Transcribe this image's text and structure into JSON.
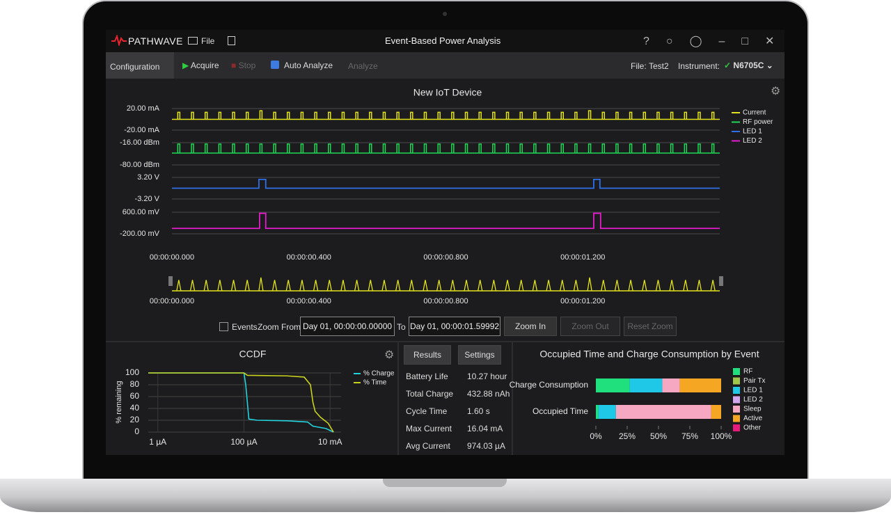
{
  "app": {
    "logo": "PATHWAVE",
    "menu": "File",
    "title": "Event-Based Power Analysis"
  },
  "toolbar": {
    "configuration": "Configuration",
    "acquire": "Acquire",
    "stop": "Stop",
    "auto_analyze": "Auto Analyze",
    "analyze": "Analyze",
    "file_label": "File:",
    "file_name": "Test2",
    "instrument_label": "Instrument:",
    "instrument": "N6705C"
  },
  "main_chart": {
    "type": "line",
    "title": "New IoT Device",
    "xlim": [
      0,
      1.6
    ],
    "xticks": [
      {
        "value": 0,
        "label": "00:00:00.000"
      },
      {
        "value": 0.4,
        "label": "00:00:00.400"
      },
      {
        "value": 0.8,
        "label": "00:00:00.800"
      },
      {
        "value": 1.2,
        "label": "00:00:01.200"
      }
    ],
    "series": [
      {
        "name": "Current",
        "color": "#e4e41c",
        "ylim": [
          -20,
          20
        ],
        "yticks": [
          {
            "value": 20,
            "label": "20.00 mA"
          },
          {
            "value": -20,
            "label": "-20.00 mA"
          }
        ],
        "baseline": 0,
        "x": [
          0.02,
          0.06,
          0.1,
          0.14,
          0.18,
          0.22,
          0.26,
          0.3,
          0.34,
          0.38,
          0.42,
          0.46,
          0.5,
          0.54,
          0.58,
          0.62,
          0.66,
          0.7,
          0.74,
          0.78,
          0.82,
          0.86,
          0.9,
          0.94,
          0.98,
          1.02,
          1.06,
          1.1,
          1.14,
          1.18,
          1.22,
          1.26,
          1.3,
          1.34,
          1.38,
          1.42,
          1.46,
          1.5,
          1.54,
          1.58
        ],
        "values": [
          13,
          13,
          13,
          13,
          13,
          13,
          16,
          13,
          13,
          13,
          13,
          13,
          13,
          13,
          13,
          13,
          13,
          13,
          13,
          13,
          13,
          13,
          13,
          13,
          13,
          13,
          13,
          13,
          13,
          13,
          16,
          13,
          13,
          13,
          13,
          13,
          13,
          13,
          13,
          13
        ]
      },
      {
        "name": "RF power",
        "color": "#1ed955",
        "ylim": [
          -80,
          -16
        ],
        "yticks": [
          {
            "value": -16,
            "label": "-16.00 dBm"
          },
          {
            "value": -80,
            "label": "-80.00 dBm"
          }
        ],
        "baseline": -46,
        "x": [
          0.02,
          0.06,
          0.1,
          0.14,
          0.18,
          0.22,
          0.26,
          0.3,
          0.34,
          0.38,
          0.42,
          0.46,
          0.5,
          0.54,
          0.58,
          0.62,
          0.66,
          0.7,
          0.74,
          0.78,
          0.82,
          0.86,
          0.9,
          0.94,
          0.98,
          1.02,
          1.06,
          1.1,
          1.14,
          1.18,
          1.22,
          1.26,
          1.3,
          1.34,
          1.38,
          1.42,
          1.46,
          1.5,
          1.54,
          1.58
        ],
        "values": [
          -20,
          -20,
          -20,
          -20,
          -20,
          -20,
          -20,
          -20,
          -20,
          -20,
          -20,
          -20,
          -20,
          -20,
          -20,
          -20,
          -20,
          -20,
          -20,
          -20,
          -20,
          -20,
          -20,
          -20,
          -20,
          -20,
          -20,
          -20,
          -20,
          -20,
          -20,
          -20,
          -20,
          -20,
          -20,
          -20,
          -20,
          -20,
          -20,
          -20
        ]
      },
      {
        "name": "LED 1",
        "color": "#2f6fe8",
        "ylim": [
          -3.2,
          3.2
        ],
        "yticks": [
          {
            "value": 3.2,
            "label": "3.20 V"
          },
          {
            "value": -3.2,
            "label": "-3.20 V"
          }
        ],
        "x": [
          0,
          0.254,
          0.254,
          0.274,
          0.274,
          1.232,
          1.232,
          1.25,
          1.25,
          1.6
        ],
        "values": [
          0,
          0,
          2.6,
          2.6,
          0,
          0,
          2.6,
          2.6,
          0,
          0
        ]
      },
      {
        "name": "LED 2",
        "color": "#e41ccb",
        "ylim": [
          -200,
          600
        ],
        "yticks": [
          {
            "value": 600,
            "label": "600.00 mV"
          },
          {
            "value": -200,
            "label": "-200.00 mV"
          }
        ],
        "x": [
          0,
          0.256,
          0.256,
          0.274,
          0.274,
          1.232,
          1.232,
          1.252,
          1.252,
          1.6
        ],
        "values": [
          0,
          0,
          560,
          560,
          0,
          0,
          560,
          560,
          0,
          0
        ]
      }
    ]
  },
  "zoom": {
    "events": "Events",
    "from_label": "Zoom From:",
    "from": "Day 01, 00:00:00.00000",
    "to_label": "To",
    "to": "Day 01, 00:00:01.59992",
    "zoom_in": "Zoom In",
    "zoom_out": "Zoom Out",
    "reset_zoom": "Reset Zoom"
  },
  "ccdf": {
    "type": "line",
    "title": "CCDF",
    "ylabel": "% remaining",
    "xscale": "log",
    "xlim": [
      6e-07,
      0.018
    ],
    "xticks": [
      {
        "value": 1e-06,
        "label": "1 µA"
      },
      {
        "value": 0.0001,
        "label": "100 µA"
      },
      {
        "value": 0.01,
        "label": "10 mA"
      }
    ],
    "ylim": [
      0,
      100
    ],
    "yticks": [
      0,
      20,
      40,
      60,
      80,
      100
    ],
    "grid": true,
    "series": [
      {
        "name": "% Charge",
        "color": "#22d3dc",
        "x": [
          6e-07,
          0.0001,
          0.00011,
          0.00013,
          0.0002,
          0.001,
          0.003,
          0.004,
          0.008,
          0.012
        ],
        "values": [
          100,
          100,
          80,
          22,
          20,
          19,
          17,
          10,
          6,
          0
        ]
      },
      {
        "name": "% Time",
        "color": "#c9d21c",
        "x": [
          6e-07,
          0.0001,
          0.00012,
          0.001,
          0.0025,
          0.0035,
          0.004,
          0.0045,
          0.006,
          0.009,
          0.012
        ],
        "values": [
          100,
          100,
          96,
          95,
          93,
          80,
          50,
          35,
          25,
          15,
          0
        ]
      }
    ]
  },
  "results": {
    "tabs": [
      "Results",
      "Settings"
    ],
    "rows": [
      [
        "Battery Life",
        "10.27 hour"
      ],
      [
        "Total Charge",
        "432.88 nAh"
      ],
      [
        "Cycle Time",
        "1.60 s"
      ],
      [
        "Max Current",
        "16.04 mA"
      ],
      [
        "Avg Current",
        "974.03 µA"
      ]
    ]
  },
  "event_chart": {
    "type": "bar",
    "orientation": "horizontal",
    "stacked": true,
    "title": "Occupied Time and Charge Consumption by Event",
    "categories": [
      "Charge Consumption",
      "Occupied Time"
    ],
    "xlim": [
      0,
      100
    ],
    "xticks": [
      {
        "value": 0,
        "label": "0%"
      },
      {
        "value": 25,
        "label": "25%"
      },
      {
        "value": 50,
        "label": "50%"
      },
      {
        "value": 75,
        "label": "75%"
      },
      {
        "value": 100,
        "label": "100%"
      }
    ],
    "series": [
      {
        "name": "RF",
        "color": "#1fe07c",
        "values": [
          27,
          2
        ]
      },
      {
        "name": "Pair Tx",
        "color": "#9fc64a",
        "values": [
          0,
          0
        ]
      },
      {
        "name": "LED 1",
        "color": "#1ec8e6",
        "values": [
          26,
          14
        ]
      },
      {
        "name": "LED 2",
        "color": "#d3a6f0",
        "values": [
          0,
          0
        ]
      },
      {
        "name": "Sleep",
        "color": "#f6a8c2",
        "values": [
          14,
          76
        ]
      },
      {
        "name": "Active",
        "color": "#f5a623",
        "values": [
          33,
          8
        ]
      },
      {
        "name": "Other",
        "color": "#e61a7c",
        "values": [
          0,
          0
        ]
      }
    ]
  }
}
